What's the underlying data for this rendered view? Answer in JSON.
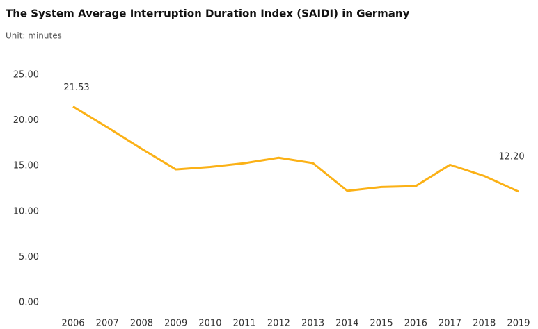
{
  "chart_data": {
    "type": "line",
    "title": "The System Average Interruption Duration Index (SAIDI) in Germany",
    "subtitle": "Unit: minutes",
    "categories": [
      "2006",
      "2007",
      "2008",
      "2009",
      "2010",
      "2011",
      "2012",
      "2013",
      "2014",
      "2015",
      "2016",
      "2017",
      "2018",
      "2019"
    ],
    "values": [
      21.53,
      19.25,
      16.89,
      14.63,
      14.9,
      15.31,
      15.91,
      15.32,
      12.28,
      12.7,
      12.8,
      15.14,
      13.91,
      12.2
    ],
    "value_labels": [
      "21.53",
      null,
      null,
      null,
      null,
      null,
      null,
      null,
      null,
      null,
      null,
      null,
      null,
      "12.20"
    ],
    "color": "#fbb116",
    "ylim": [
      0,
      25
    ],
    "yticks": [
      {
        "value": 0,
        "label": "0.00"
      },
      {
        "value": 5,
        "label": "5.00"
      },
      {
        "value": 10,
        "label": "10.00"
      },
      {
        "value": 15,
        "label": "15.00"
      },
      {
        "value": 20,
        "label": "20.00"
      },
      {
        "value": 25,
        "label": "25.00"
      }
    ],
    "grid": false
  }
}
